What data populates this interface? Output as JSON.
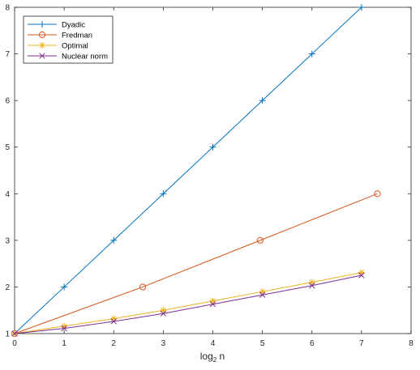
{
  "chart_data": {
    "type": "line",
    "title": "",
    "xlabel": "log",
    "xlabel_sub": "2",
    "xlabel_suffix": " n",
    "ylabel": "",
    "xlim": [
      0,
      8
    ],
    "ylim": [
      1,
      8
    ],
    "xticks": [
      0,
      1,
      2,
      3,
      4,
      5,
      6,
      7,
      8
    ],
    "yticks": [
      1,
      2,
      3,
      4,
      5,
      6,
      7,
      8
    ],
    "grid": false,
    "legend_position": "top-left",
    "series": [
      {
        "name": "Dyadic",
        "color": "#0072BD",
        "marker": "plus",
        "x": [
          0,
          1,
          2,
          3,
          4,
          5,
          6,
          7
        ],
        "y": [
          1,
          2,
          3,
          4,
          5,
          6,
          7,
          8
        ]
      },
      {
        "name": "Fredman",
        "color": "#D95319",
        "marker": "circle",
        "x": [
          0,
          2.585,
          4.954,
          7.32
        ],
        "y": [
          1,
          2,
          3,
          4
        ]
      },
      {
        "name": "Optimal",
        "color": "#EDB120",
        "marker": "asterisk",
        "x": [
          0,
          1,
          2,
          3,
          4,
          5,
          6,
          7
        ],
        "y": [
          1,
          1.16,
          1.32,
          1.5,
          1.7,
          1.9,
          2.1,
          2.31
        ]
      },
      {
        "name": "Nuclear norm",
        "color": "#7E2F8E",
        "marker": "cross",
        "x": [
          0,
          1,
          2,
          3,
          4,
          5,
          6,
          7
        ],
        "y": [
          1,
          1.11,
          1.26,
          1.43,
          1.63,
          1.83,
          2.03,
          2.25
        ]
      }
    ]
  }
}
